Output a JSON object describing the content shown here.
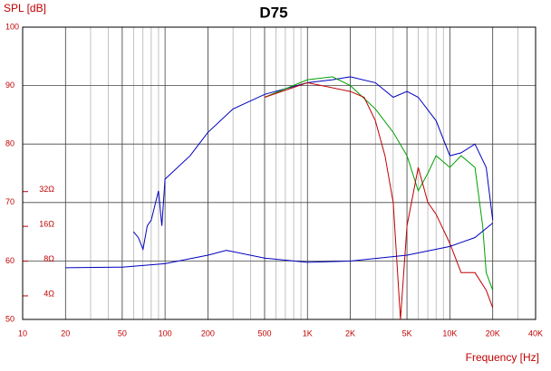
{
  "chart_data": {
    "type": "line",
    "title": "D75",
    "y_label": "SPL [dB]",
    "x_label": "Frequency [Hz]",
    "log_x": true,
    "log_y2": true,
    "grid": true,
    "xlim": [
      10,
      40000
    ],
    "ylim": [
      50,
      100
    ],
    "y2lim": [
      2.5,
      850
    ],
    "xticks": [
      10,
      20,
      50,
      100,
      200,
      500,
      {
        "value": 1000,
        "label": "1K"
      },
      {
        "value": 2000,
        "label": "2K"
      },
      {
        "value": 5000,
        "label": "5K"
      },
      {
        "value": 10000,
        "label": "10K"
      },
      {
        "value": 20000,
        "label": "20K"
      },
      {
        "value": 40000,
        "label": "40K"
      }
    ],
    "yticks": [
      50,
      60,
      70,
      80,
      90,
      100
    ],
    "y2ticks": [
      {
        "value": 32,
        "label": "32Ω"
      },
      {
        "value": 16,
        "label": "16Ω"
      },
      {
        "value": 8,
        "label": "8Ω"
      },
      {
        "value": 4,
        "label": "4Ω"
      }
    ],
    "series": [
      {
        "color": "#0000c0",
        "x": [
          60,
          65,
          70,
          75,
          80,
          90,
          95,
          100,
          150,
          200,
          300,
          500,
          1000,
          1500,
          2000,
          3000,
          4000,
          5000,
          6000,
          8000,
          10000,
          12000,
          15000,
          18000,
          20000
        ],
        "values": [
          65,
          64,
          62,
          66,
          67,
          72,
          66,
          74,
          78,
          82,
          86,
          88.5,
          90.5,
          91,
          91.5,
          90.5,
          88,
          89,
          88,
          84,
          78,
          78.5,
          80,
          76,
          67
        ]
      },
      {
        "color": "#00a000",
        "x": [
          500,
          1000,
          1500,
          2000,
          3000,
          4000,
          5000,
          6000,
          7000,
          8000,
          10000,
          12000,
          15000,
          17000,
          18000,
          20000
        ],
        "values": [
          88,
          91,
          91.5,
          90,
          86,
          82,
          78,
          72,
          75,
          78,
          76,
          78,
          76,
          66,
          58,
          55
        ]
      },
      {
        "color": "#c00000",
        "x": [
          500,
          1000,
          2000,
          2500,
          3000,
          3500,
          4000,
          4500,
          5000,
          6000,
          7000,
          8000,
          10000,
          12000,
          15000,
          18000,
          20000
        ],
        "values": [
          88,
          90.5,
          89,
          88,
          84,
          78,
          70,
          50,
          66,
          76,
          70,
          68,
          63,
          58,
          58,
          55,
          52
        ]
      },
      {
        "color": "#0000c0",
        "axis": "y2",
        "x": [
          20,
          50,
          100,
          200,
          270,
          500,
          1000,
          2000,
          5000,
          10000,
          15000,
          20000
        ],
        "values": [
          7.0,
          7.1,
          7.6,
          9.0,
          9.9,
          8.5,
          7.8,
          8.0,
          9.0,
          10.7,
          12.8,
          17.1
        ]
      }
    ]
  }
}
